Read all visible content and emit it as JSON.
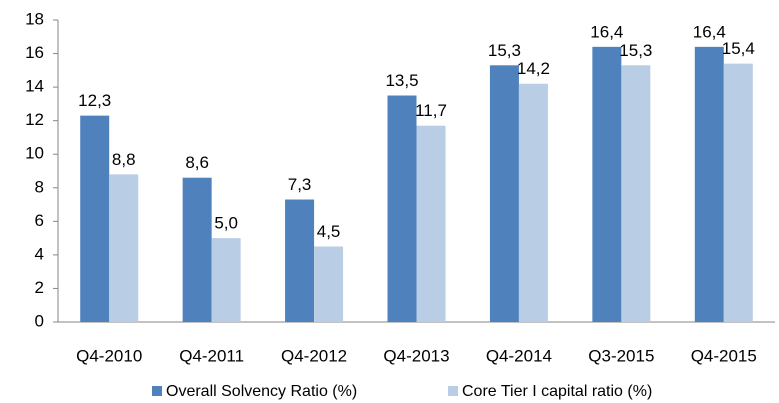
{
  "chart_data": {
    "type": "bar",
    "categories": [
      "Q4-2010",
      "Q4-2011",
      "Q4-2012",
      "Q4-2013",
      "Q4-2014",
      "Q3-2015",
      "Q4-2015"
    ],
    "series": [
      {
        "name": "Overall Solvency Ratio (%)",
        "color": "#4f81bd",
        "values": [
          12.3,
          8.6,
          7.3,
          13.5,
          15.3,
          16.4,
          16.4
        ],
        "value_labels": [
          "12,3",
          "8,6",
          "7,3",
          "13,5",
          "15,3",
          "16,4",
          "16,4"
        ]
      },
      {
        "name": "Core  Tier I capital ratio (%)",
        "color": "#b9cde5",
        "values": [
          8.8,
          5.0,
          4.5,
          11.7,
          14.2,
          15.3,
          15.4
        ],
        "value_labels": [
          "8,8",
          "5,0",
          "4,5",
          "11,7",
          "14,2",
          "15,3",
          "15,4"
        ]
      }
    ],
    "ylim": [
      0,
      18
    ],
    "yticks": [
      0,
      2,
      4,
      6,
      8,
      10,
      12,
      14,
      16,
      18
    ],
    "grid": false,
    "legend": "bottom"
  }
}
